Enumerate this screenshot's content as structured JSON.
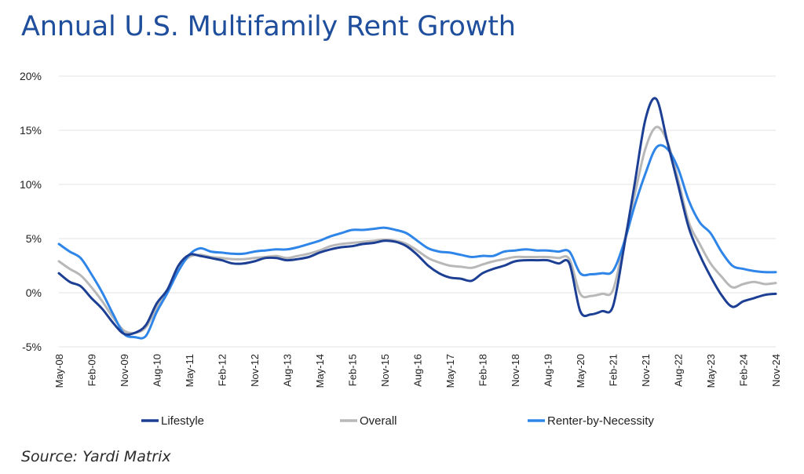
{
  "title": "Annual U.S. Multifamily Rent Growth",
  "source": "Source: Yardi Matrix",
  "colors": {
    "Lifestyle": "#1c3f94",
    "Overall": "#b8b8b8",
    "Renter-by-Necessity": "#2f86e8",
    "grid": "#e3e3e3"
  },
  "chart_data": {
    "type": "line",
    "y_unit": "%",
    "ylim": [
      -5,
      20
    ],
    "yticks": [
      -5,
      0,
      5,
      10,
      15,
      20
    ],
    "ytick_labels": [
      "-5%",
      "0%",
      "5%",
      "10%",
      "15%",
      "20%"
    ],
    "x_range": [
      "May-08",
      "Nov-24"
    ],
    "x_tick_labels": [
      "May-08",
      "Feb-09",
      "Nov-09",
      "Aug-10",
      "May-11",
      "Feb-12",
      "Nov-12",
      "Aug-13",
      "May-14",
      "Feb-15",
      "Nov-15",
      "Aug-16",
      "May-17",
      "Feb-18",
      "Nov-18",
      "Aug-19",
      "May-20",
      "Feb-21",
      "Nov-21",
      "Aug-22",
      "May-23",
      "Feb-24",
      "Nov-24"
    ],
    "grid": "horizontal",
    "legend_position": "bottom",
    "series": [
      {
        "name": "Lifestyle",
        "points": [
          [
            "May-08",
            1.8
          ],
          [
            "Aug-08",
            1.0
          ],
          [
            "Nov-08",
            0.6
          ],
          [
            "Feb-09",
            -0.5
          ],
          [
            "May-09",
            -1.5
          ],
          [
            "Aug-09",
            -2.8
          ],
          [
            "Nov-09",
            -3.8
          ],
          [
            "Feb-10",
            -3.7
          ],
          [
            "May-10",
            -3.0
          ],
          [
            "Aug-10",
            -1.0
          ],
          [
            "Nov-10",
            0.3
          ],
          [
            "Feb-11",
            2.5
          ],
          [
            "May-11",
            3.5
          ],
          [
            "Aug-11",
            3.4
          ],
          [
            "Nov-11",
            3.2
          ],
          [
            "Feb-12",
            3.0
          ],
          [
            "May-12",
            2.7
          ],
          [
            "Aug-12",
            2.7
          ],
          [
            "Nov-12",
            2.9
          ],
          [
            "Feb-13",
            3.2
          ],
          [
            "May-13",
            3.2
          ],
          [
            "Aug-13",
            3.0
          ],
          [
            "Nov-13",
            3.1
          ],
          [
            "Feb-14",
            3.3
          ],
          [
            "May-14",
            3.7
          ],
          [
            "Aug-14",
            4.0
          ],
          [
            "Nov-14",
            4.2
          ],
          [
            "Feb-15",
            4.3
          ],
          [
            "May-15",
            4.5
          ],
          [
            "Aug-15",
            4.6
          ],
          [
            "Nov-15",
            4.8
          ],
          [
            "Feb-16",
            4.7
          ],
          [
            "May-16",
            4.3
          ],
          [
            "Aug-16",
            3.5
          ],
          [
            "Nov-16",
            2.5
          ],
          [
            "Feb-17",
            1.8
          ],
          [
            "May-17",
            1.4
          ],
          [
            "Aug-17",
            1.3
          ],
          [
            "Nov-17",
            1.1
          ],
          [
            "Feb-18",
            1.8
          ],
          [
            "May-18",
            2.2
          ],
          [
            "Aug-18",
            2.5
          ],
          [
            "Nov-18",
            2.9
          ],
          [
            "Feb-19",
            3.0
          ],
          [
            "May-19",
            3.0
          ],
          [
            "Aug-19",
            3.0
          ],
          [
            "Nov-19",
            2.7
          ],
          [
            "Feb-20",
            2.7
          ],
          [
            "May-20",
            -1.7
          ],
          [
            "Aug-20",
            -2.0
          ],
          [
            "Nov-20",
            -1.7
          ],
          [
            "Feb-21",
            -1.3
          ],
          [
            "May-21",
            4.0
          ],
          [
            "Aug-21",
            10.0
          ],
          [
            "Nov-21",
            16.0
          ],
          [
            "Feb-22",
            17.9
          ],
          [
            "May-22",
            14.0
          ],
          [
            "Aug-22",
            10.0
          ],
          [
            "Nov-22",
            6.0
          ],
          [
            "Feb-23",
            3.5
          ],
          [
            "May-23",
            1.5
          ],
          [
            "Aug-23",
            -0.2
          ],
          [
            "Nov-23",
            -1.3
          ],
          [
            "Feb-24",
            -0.8
          ],
          [
            "May-24",
            -0.5
          ],
          [
            "Aug-24",
            -0.2
          ],
          [
            "Nov-24",
            -0.1
          ]
        ]
      },
      {
        "name": "Overall",
        "points": [
          [
            "May-08",
            2.9
          ],
          [
            "Aug-08",
            2.2
          ],
          [
            "Nov-08",
            1.6
          ],
          [
            "Feb-09",
            0.5
          ],
          [
            "May-09",
            -0.8
          ],
          [
            "Aug-09",
            -2.3
          ],
          [
            "Nov-09",
            -3.5
          ],
          [
            "Feb-10",
            -3.7
          ],
          [
            "May-10",
            -3.2
          ],
          [
            "Aug-10",
            -1.4
          ],
          [
            "Nov-10",
            0.2
          ],
          [
            "Feb-11",
            2.2
          ],
          [
            "May-11",
            3.3
          ],
          [
            "Aug-11",
            3.5
          ],
          [
            "Nov-11",
            3.3
          ],
          [
            "Feb-12",
            3.2
          ],
          [
            "May-12",
            3.1
          ],
          [
            "Aug-12",
            3.1
          ],
          [
            "Nov-12",
            3.2
          ],
          [
            "Feb-13",
            3.3
          ],
          [
            "May-13",
            3.4
          ],
          [
            "Aug-13",
            3.2
          ],
          [
            "Nov-13",
            3.4
          ],
          [
            "Feb-14",
            3.6
          ],
          [
            "May-14",
            3.9
          ],
          [
            "Aug-14",
            4.3
          ],
          [
            "Nov-14",
            4.5
          ],
          [
            "Feb-15",
            4.6
          ],
          [
            "May-15",
            4.7
          ],
          [
            "Aug-15",
            4.8
          ],
          [
            "Nov-15",
            4.9
          ],
          [
            "Feb-16",
            4.8
          ],
          [
            "May-16",
            4.5
          ],
          [
            "Aug-16",
            3.9
          ],
          [
            "Nov-16",
            3.2
          ],
          [
            "Feb-17",
            2.8
          ],
          [
            "May-17",
            2.5
          ],
          [
            "Aug-17",
            2.4
          ],
          [
            "Nov-17",
            2.3
          ],
          [
            "Feb-18",
            2.6
          ],
          [
            "May-18",
            2.9
          ],
          [
            "Aug-18",
            3.1
          ],
          [
            "Nov-18",
            3.3
          ],
          [
            "Feb-19",
            3.3
          ],
          [
            "May-19",
            3.3
          ],
          [
            "Aug-19",
            3.3
          ],
          [
            "Nov-19",
            3.2
          ],
          [
            "Feb-20",
            3.1
          ],
          [
            "May-20",
            -0.1
          ],
          [
            "Aug-20",
            -0.3
          ],
          [
            "Nov-20",
            -0.1
          ],
          [
            "Feb-21",
            0.2
          ],
          [
            "May-21",
            4.5
          ],
          [
            "Aug-21",
            9.0
          ],
          [
            "Nov-21",
            13.3
          ],
          [
            "Feb-22",
            15.3
          ],
          [
            "May-22",
            14.0
          ],
          [
            "Aug-22",
            10.5
          ],
          [
            "Nov-22",
            6.5
          ],
          [
            "Feb-23",
            4.5
          ],
          [
            "May-23",
            2.7
          ],
          [
            "Aug-23",
            1.5
          ],
          [
            "Nov-23",
            0.5
          ],
          [
            "Feb-24",
            0.8
          ],
          [
            "May-24",
            1.0
          ],
          [
            "Aug-24",
            0.8
          ],
          [
            "Nov-24",
            0.9
          ]
        ]
      },
      {
        "name": "Renter-by-Necessity",
        "points": [
          [
            "May-08",
            4.5
          ],
          [
            "Aug-08",
            3.8
          ],
          [
            "Nov-08",
            3.2
          ],
          [
            "Feb-09",
            1.7
          ],
          [
            "May-09",
            0.0
          ],
          [
            "Aug-09",
            -2.0
          ],
          [
            "Nov-09",
            -3.8
          ],
          [
            "Feb-10",
            -4.1
          ],
          [
            "May-10",
            -4.0
          ],
          [
            "Aug-10",
            -1.8
          ],
          [
            "Nov-10",
            0.0
          ],
          [
            "Feb-11",
            2.0
          ],
          [
            "May-11",
            3.5
          ],
          [
            "Aug-11",
            4.1
          ],
          [
            "Nov-11",
            3.8
          ],
          [
            "Feb-12",
            3.7
          ],
          [
            "May-12",
            3.6
          ],
          [
            "Aug-12",
            3.6
          ],
          [
            "Nov-12",
            3.8
          ],
          [
            "Feb-13",
            3.9
          ],
          [
            "May-13",
            4.0
          ],
          [
            "Aug-13",
            4.0
          ],
          [
            "Nov-13",
            4.2
          ],
          [
            "Feb-14",
            4.5
          ],
          [
            "May-14",
            4.8
          ],
          [
            "Aug-14",
            5.2
          ],
          [
            "Nov-14",
            5.5
          ],
          [
            "Feb-15",
            5.8
          ],
          [
            "May-15",
            5.8
          ],
          [
            "Aug-15",
            5.9
          ],
          [
            "Nov-15",
            6.0
          ],
          [
            "Feb-16",
            5.8
          ],
          [
            "May-16",
            5.5
          ],
          [
            "Aug-16",
            4.8
          ],
          [
            "Nov-16",
            4.1
          ],
          [
            "Feb-17",
            3.8
          ],
          [
            "May-17",
            3.7
          ],
          [
            "Aug-17",
            3.5
          ],
          [
            "Nov-17",
            3.3
          ],
          [
            "Feb-18",
            3.4
          ],
          [
            "May-18",
            3.4
          ],
          [
            "Aug-18",
            3.8
          ],
          [
            "Nov-18",
            3.9
          ],
          [
            "Feb-19",
            4.0
          ],
          [
            "May-19",
            3.9
          ],
          [
            "Aug-19",
            3.9
          ],
          [
            "Nov-19",
            3.8
          ],
          [
            "Feb-20",
            3.8
          ],
          [
            "May-20",
            1.8
          ],
          [
            "Aug-20",
            1.7
          ],
          [
            "Nov-20",
            1.8
          ],
          [
            "Feb-21",
            2.0
          ],
          [
            "May-21",
            4.5
          ],
          [
            "Aug-21",
            8.0
          ],
          [
            "Nov-21",
            11.0
          ],
          [
            "Feb-22",
            13.4
          ],
          [
            "May-22",
            13.3
          ],
          [
            "Aug-22",
            11.5
          ],
          [
            "Nov-22",
            8.5
          ],
          [
            "Feb-23",
            6.5
          ],
          [
            "May-23",
            5.5
          ],
          [
            "Aug-23",
            3.8
          ],
          [
            "Nov-23",
            2.5
          ],
          [
            "Feb-24",
            2.2
          ],
          [
            "May-24",
            2.0
          ],
          [
            "Aug-24",
            1.9
          ],
          [
            "Nov-24",
            1.9
          ]
        ]
      }
    ]
  }
}
